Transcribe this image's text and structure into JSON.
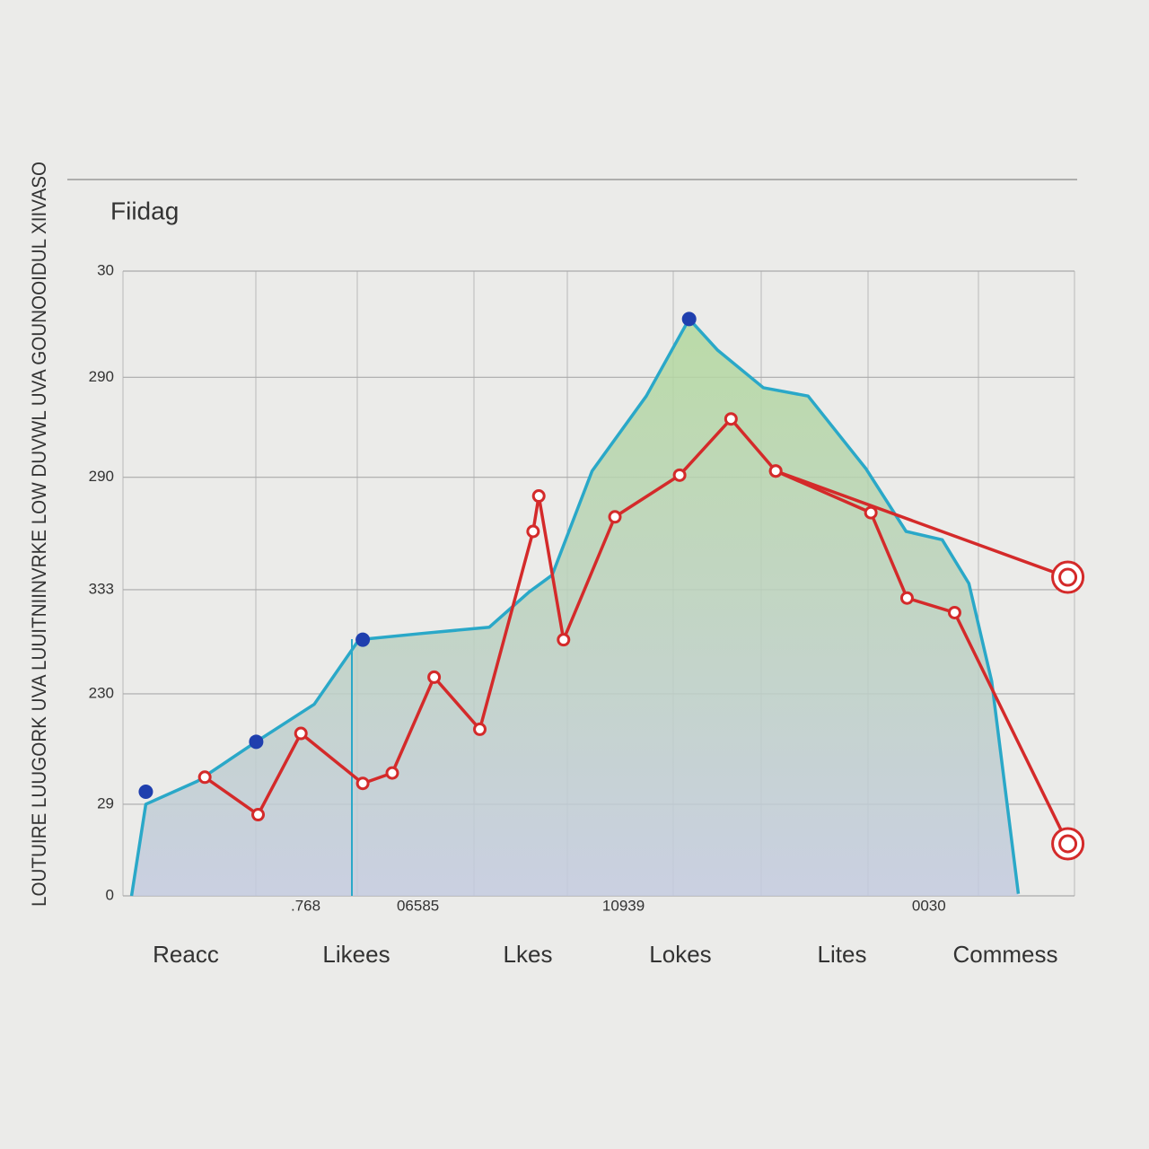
{
  "chart_data": {
    "type": "line",
    "title": "Fiidag",
    "y_label": "LOUTUIRE LUUGORK UVA LUUITNIINVRKE LOW DUVWL UVA GOUNOOIDUL XIIVASO",
    "categories": [
      "Reacc",
      "Likees",
      "Lkes",
      "Lokes",
      "Lites",
      "Commess"
    ],
    "xlim": [
      0,
      100
    ],
    "xticks": [
      {
        "value": 19.2,
        "label": ".768"
      },
      {
        "value": 31.0,
        "label": "06585"
      },
      {
        "value": 52.6,
        "label": "10939"
      },
      {
        "value": 84.7,
        "label": "0030"
      }
    ],
    "ylim": [
      0,
      300
    ],
    "yticks": [
      {
        "value": 300,
        "label": "30"
      },
      {
        "value": 249,
        "label": "290"
      },
      {
        "value": 201,
        "label": "290"
      },
      {
        "value": 147,
        "label": "333"
      },
      {
        "value": 97,
        "label": "230"
      },
      {
        "value": 44,
        "label": "29"
      },
      0
    ],
    "grid": true,
    "series": [
      {
        "style": "area",
        "color": "#2aa8c8",
        "x": [
          0.9,
          2.4,
          7.8,
          14.0,
          20.1,
          24.8,
          31.4,
          38.5,
          42.7,
          45.1,
          49.3,
          55.0,
          59.5,
          62.5,
          67.3,
          72.0,
          78.1,
          82.3,
          86.1,
          88.9,
          91.3,
          94.1
        ],
        "values": [
          0,
          44,
          55,
          74,
          92,
          123,
          126,
          129,
          146,
          154,
          204,
          240,
          277,
          262,
          244,
          240,
          205,
          175,
          171,
          150,
          103,
          1
        ]
      },
      {
        "style": "points",
        "color": "#1f3fae",
        "x": [
          2.4,
          14.0,
          25.2,
          59.5
        ],
        "values": [
          50,
          74,
          123,
          277
        ]
      },
      {
        "style": "line",
        "color": "#d42a2a",
        "x": [
          8.6,
          14.2,
          18.7,
          25.2,
          28.3,
          32.7,
          37.5,
          43.1,
          43.7,
          46.3,
          51.7,
          58.5,
          63.9,
          68.6,
          78.6,
          82.4,
          87.4,
          99.3
        ],
        "values": [
          57,
          39,
          78,
          54,
          59,
          105,
          80,
          175,
          192,
          123,
          182,
          202,
          229,
          204,
          184,
          143,
          136,
          25
        ]
      },
      {
        "style": "line",
        "color": "#d42a2a",
        "x": [
          68.6,
          99.3
        ],
        "values": [
          204,
          153
        ]
      }
    ]
  }
}
